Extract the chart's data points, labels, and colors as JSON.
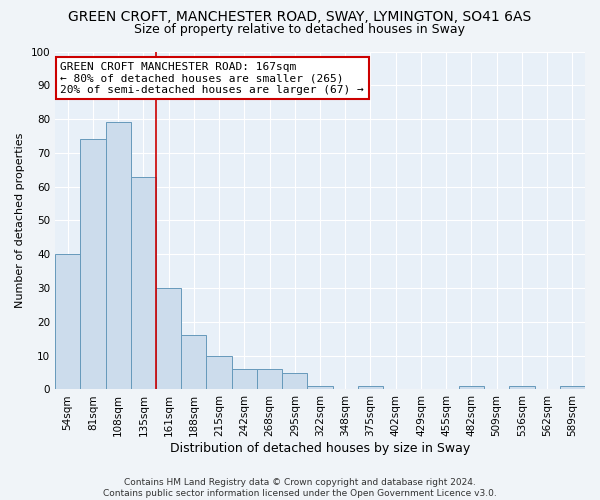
{
  "title": "GREEN CROFT, MANCHESTER ROAD, SWAY, LYMINGTON, SO41 6AS",
  "subtitle": "Size of property relative to detached houses in Sway",
  "xlabel": "Distribution of detached houses by size in Sway",
  "ylabel": "Number of detached properties",
  "footnote": "Contains HM Land Registry data © Crown copyright and database right 2024.\nContains public sector information licensed under the Open Government Licence v3.0.",
  "bar_labels": [
    "54sqm",
    "81sqm",
    "108sqm",
    "135sqm",
    "161sqm",
    "188sqm",
    "215sqm",
    "242sqm",
    "268sqm",
    "295sqm",
    "322sqm",
    "348sqm",
    "375sqm",
    "402sqm",
    "429sqm",
    "455sqm",
    "482sqm",
    "509sqm",
    "536sqm",
    "562sqm",
    "589sqm"
  ],
  "bar_values": [
    40,
    74,
    79,
    63,
    30,
    16,
    10,
    6,
    6,
    5,
    1,
    0,
    1,
    0,
    0,
    0,
    1,
    0,
    1,
    0,
    1
  ],
  "bar_color": "#ccdcec",
  "bar_edge_color": "#6699bb",
  "red_line_x": 3.5,
  "red_line_label": "GREEN CROFT MANCHESTER ROAD: 167sqm\n← 80% of detached houses are smaller (265)\n20% of semi-detached houses are larger (67) →",
  "annotation_box_color": "#ffffff",
  "annotation_edge_color": "#cc0000",
  "ylim": [
    0,
    100
  ],
  "yticks": [
    0,
    10,
    20,
    30,
    40,
    50,
    60,
    70,
    80,
    90,
    100
  ],
  "background_color": "#f0f4f8",
  "plot_background": "#e8f0f8",
  "grid_color": "#ffffff",
  "title_fontsize": 10,
  "subtitle_fontsize": 9,
  "xlabel_fontsize": 9,
  "ylabel_fontsize": 8,
  "tick_fontsize": 7.5,
  "annotation_fontsize": 8,
  "footnote_fontsize": 6.5
}
